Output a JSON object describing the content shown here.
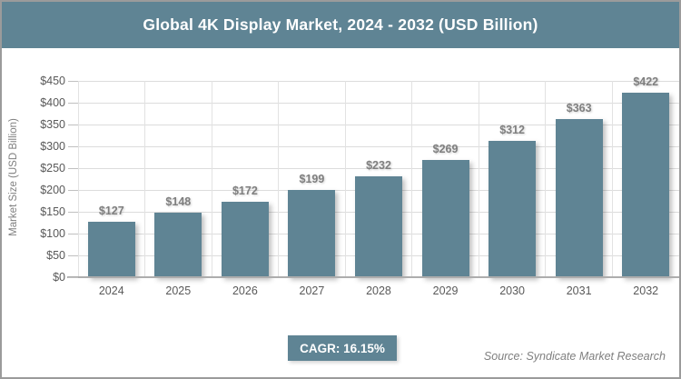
{
  "header": {
    "title": "Global 4K Display Market, 2024 - 2032 (USD Billion)",
    "background": "#5f8494",
    "text_color": "#ffffff"
  },
  "chart_data": {
    "type": "bar",
    "title": "Global 4K Display Market, 2024 - 2032 (USD Billion)",
    "categories": [
      "2024",
      "2025",
      "2026",
      "2027",
      "2028",
      "2029",
      "2030",
      "2031",
      "2032"
    ],
    "values": [
      127,
      148,
      172,
      199,
      232,
      269,
      312,
      363,
      422
    ],
    "bar_labels": [
      "$127",
      "$148",
      "$172",
      "$199",
      "$232",
      "$269",
      "$312",
      "$363",
      "$422"
    ],
    "xlabel": "",
    "ylabel": "Market Size (USD Billion)",
    "ylim": [
      0,
      450
    ],
    "ytick_step": 50,
    "ytick_labels": [
      "$0",
      "$50",
      "$100",
      "$150",
      "$200",
      "$250",
      "$300",
      "$350",
      "$400",
      "$450"
    ],
    "grid": true,
    "legend": "none",
    "bar_color": "#5f8494"
  },
  "footer": {
    "cagr_label": "CAGR: 16.15%",
    "cagr_background": "#5f8494",
    "source": "Source: Syndicate Market Research"
  }
}
